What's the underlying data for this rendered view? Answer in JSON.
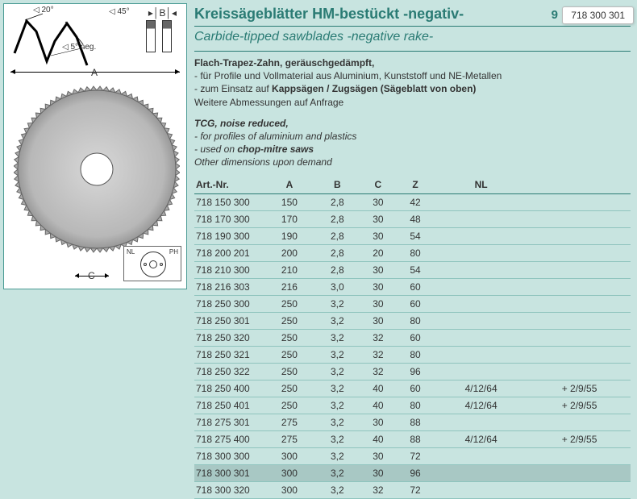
{
  "colors": {
    "page_bg": "#c8e4e0",
    "accent": "#2a7b74",
    "rule": "#8fc4be",
    "highlight_row": "#a8c8c4",
    "diagram_border": "#4a9b94",
    "text": "#333333"
  },
  "top_code_box": "718 300 301",
  "top_page_indicator": "9",
  "diagram": {
    "angle_top": "20°",
    "angle_mid": "45°",
    "angle_neg": "5° neg.",
    "label_A": "A",
    "label_B": "B",
    "label_C": "C",
    "nl": "NL",
    "ph": "PH"
  },
  "titles": {
    "de": "Kreissägeblätter HM-bestückt -negativ-",
    "en": "Carbide-tipped sawblades -negative rake-"
  },
  "desc_de": {
    "l1_bold": "Flach-Trapez-Zahn, geräuschgedämpft,",
    "l2": "- für Profile und Vollmaterial aus Aluminium, Kunststoff und NE-Metallen",
    "l3a": "- zum Einsatz auf ",
    "l3b_bold": "Kappsägen / Zugsägen (Sägeblatt von oben)",
    "l4": "Weitere Abmessungen auf Anfrage"
  },
  "desc_en": {
    "l1_bold": "TCG, noise reduced,",
    "l2": "- for profiles of aluminium and plastics",
    "l3a": "- used on ",
    "l3b_bold": "chop-mitre saws",
    "l4": "Other dimensions upon demand"
  },
  "table": {
    "headers": {
      "art": "Art.-Nr.",
      "A": "A",
      "B": "B",
      "C": "C",
      "Z": "Z",
      "NL": "NL",
      "extra": ""
    },
    "col_align": {
      "art": "left",
      "rest": "center"
    },
    "rows": [
      {
        "art": "718 150 300",
        "A": "150",
        "B": "2,8",
        "C": "30",
        "Z": "42",
        "NL": "",
        "extra": ""
      },
      {
        "art": "718 170 300",
        "A": "170",
        "B": "2,8",
        "C": "30",
        "Z": "48",
        "NL": "",
        "extra": ""
      },
      {
        "art": "718 190 300",
        "A": "190",
        "B": "2,8",
        "C": "30",
        "Z": "54",
        "NL": "",
        "extra": ""
      },
      {
        "art": "718 200 201",
        "A": "200",
        "B": "2,8",
        "C": "20",
        "Z": "80",
        "NL": "",
        "extra": ""
      },
      {
        "art": "718 210 300",
        "A": "210",
        "B": "2,8",
        "C": "30",
        "Z": "54",
        "NL": "",
        "extra": ""
      },
      {
        "art": "718 216 303",
        "A": "216",
        "B": "3,0",
        "C": "30",
        "Z": "60",
        "NL": "",
        "extra": ""
      },
      {
        "art": "718 250 300",
        "A": "250",
        "B": "3,2",
        "C": "30",
        "Z": "60",
        "NL": "",
        "extra": ""
      },
      {
        "art": "718 250 301",
        "A": "250",
        "B": "3,2",
        "C": "30",
        "Z": "80",
        "NL": "",
        "extra": ""
      },
      {
        "art": "718 250 320",
        "A": "250",
        "B": "3,2",
        "C": "32",
        "Z": "60",
        "NL": "",
        "extra": ""
      },
      {
        "art": "718 250 321",
        "A": "250",
        "B": "3,2",
        "C": "32",
        "Z": "80",
        "NL": "",
        "extra": ""
      },
      {
        "art": "718 250 322",
        "A": "250",
        "B": "3,2",
        "C": "32",
        "Z": "96",
        "NL": "",
        "extra": ""
      },
      {
        "art": "718 250 400",
        "A": "250",
        "B": "3,2",
        "C": "40",
        "Z": "60",
        "NL": "4/12/64",
        "extra": "+ 2/9/55"
      },
      {
        "art": "718 250 401",
        "A": "250",
        "B": "3,2",
        "C": "40",
        "Z": "80",
        "NL": "4/12/64",
        "extra": "+ 2/9/55"
      },
      {
        "art": "718 275 301",
        "A": "275",
        "B": "3,2",
        "C": "30",
        "Z": "88",
        "NL": "",
        "extra": ""
      },
      {
        "art": "718 275 400",
        "A": "275",
        "B": "3,2",
        "C": "40",
        "Z": "88",
        "NL": "4/12/64",
        "extra": "+ 2/9/55"
      },
      {
        "art": "718 300 300",
        "A": "300",
        "B": "3,2",
        "C": "30",
        "Z": "72",
        "NL": "",
        "extra": ""
      },
      {
        "art": "718 300 301",
        "A": "300",
        "B": "3,2",
        "C": "30",
        "Z": "96",
        "NL": "",
        "extra": "",
        "highlight": true
      },
      {
        "art": "718 300 320",
        "A": "300",
        "B": "3,2",
        "C": "32",
        "Z": "72",
        "NL": "",
        "extra": ""
      }
    ]
  }
}
